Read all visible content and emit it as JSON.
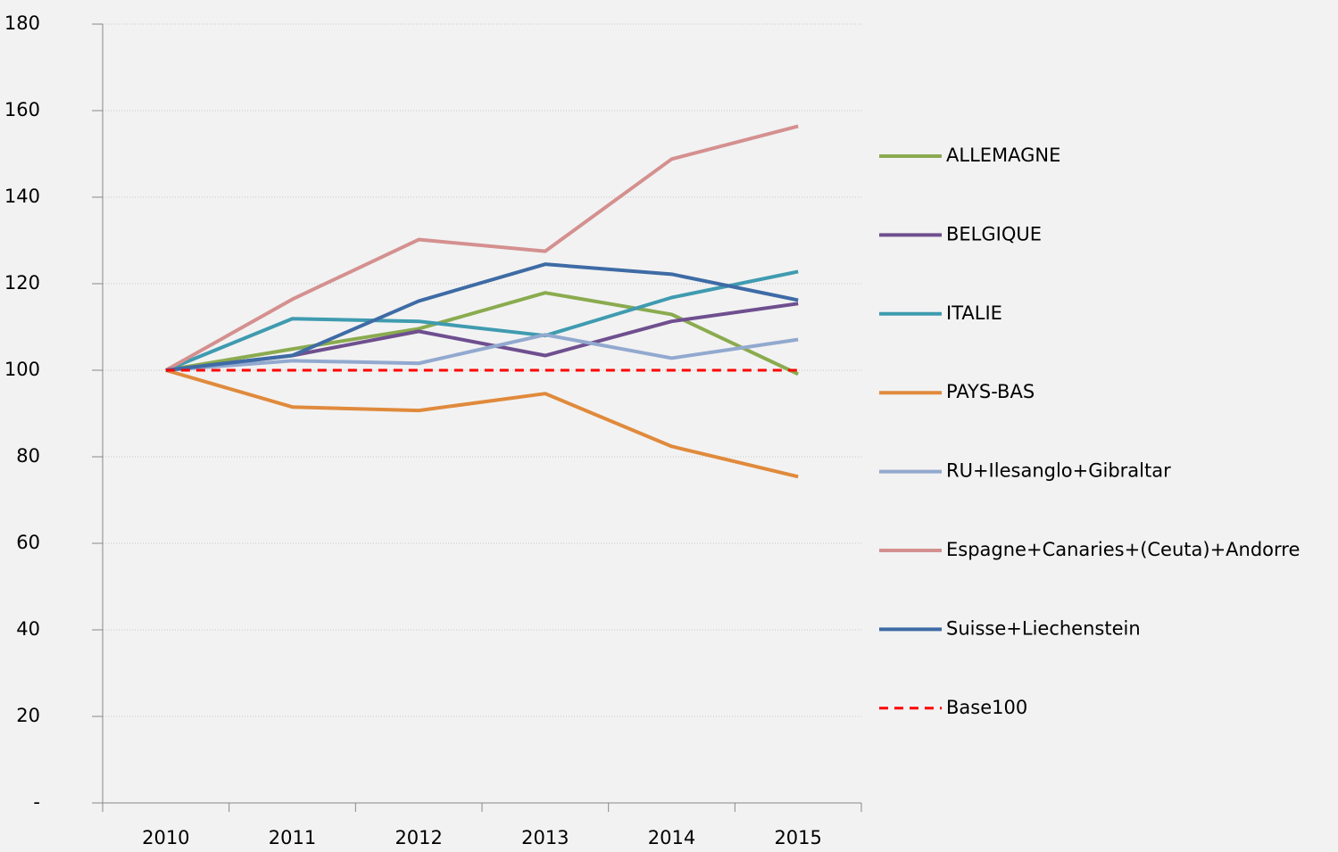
{
  "chart_data": {
    "type": "line",
    "categories": [
      "2010",
      "2011",
      "2012",
      "2013",
      "2014",
      "2015"
    ],
    "series": [
      {
        "name": "ALLEMAGNE",
        "color": "#8aab4f",
        "values": [
          100,
          104.9,
          109.6,
          117.9,
          112.9,
          99.1
        ]
      },
      {
        "name": "BELGIQUE",
        "color": "#6f4f8f",
        "values": [
          100,
          103.4,
          109,
          103.4,
          111.3,
          115.4
        ]
      },
      {
        "name": "ITALIE",
        "color": "#3f9bb0",
        "values": [
          100,
          111.9,
          111.3,
          108,
          116.8,
          122.8
        ]
      },
      {
        "name": "PAYS-BAS",
        "color": "#e08a3c",
        "values": [
          100,
          91.5,
          90.7,
          94.6,
          82.4,
          75.4
        ]
      },
      {
        "name": "RU+Ilesanglo+Gibraltar",
        "color": "#92a9cf",
        "values": [
          100,
          102.2,
          101.6,
          108.2,
          102.8,
          107.1
        ]
      },
      {
        "name": "Espagne+Canaries+(Ceuta)+Andorre",
        "color": "#d4908f",
        "values": [
          100,
          116.4,
          130.2,
          127.5,
          148.8,
          156.4
        ]
      },
      {
        "name": "Suisse+Liechenstein",
        "color": "#3e6ba5",
        "values": [
          100,
          103.4,
          116,
          124.5,
          122.2,
          116.2
        ]
      },
      {
        "name": "Base100",
        "color": "#ff0000",
        "line_style": "dashed",
        "values": [
          100,
          100,
          100,
          100,
          100,
          100
        ]
      }
    ],
    "ylim": [
      0,
      180
    ],
    "yticks": [
      {
        "value": 0,
        "label": "-"
      },
      20,
      40,
      60,
      80,
      100,
      120,
      140,
      160,
      180
    ],
    "grid": true,
    "legend": "right"
  }
}
